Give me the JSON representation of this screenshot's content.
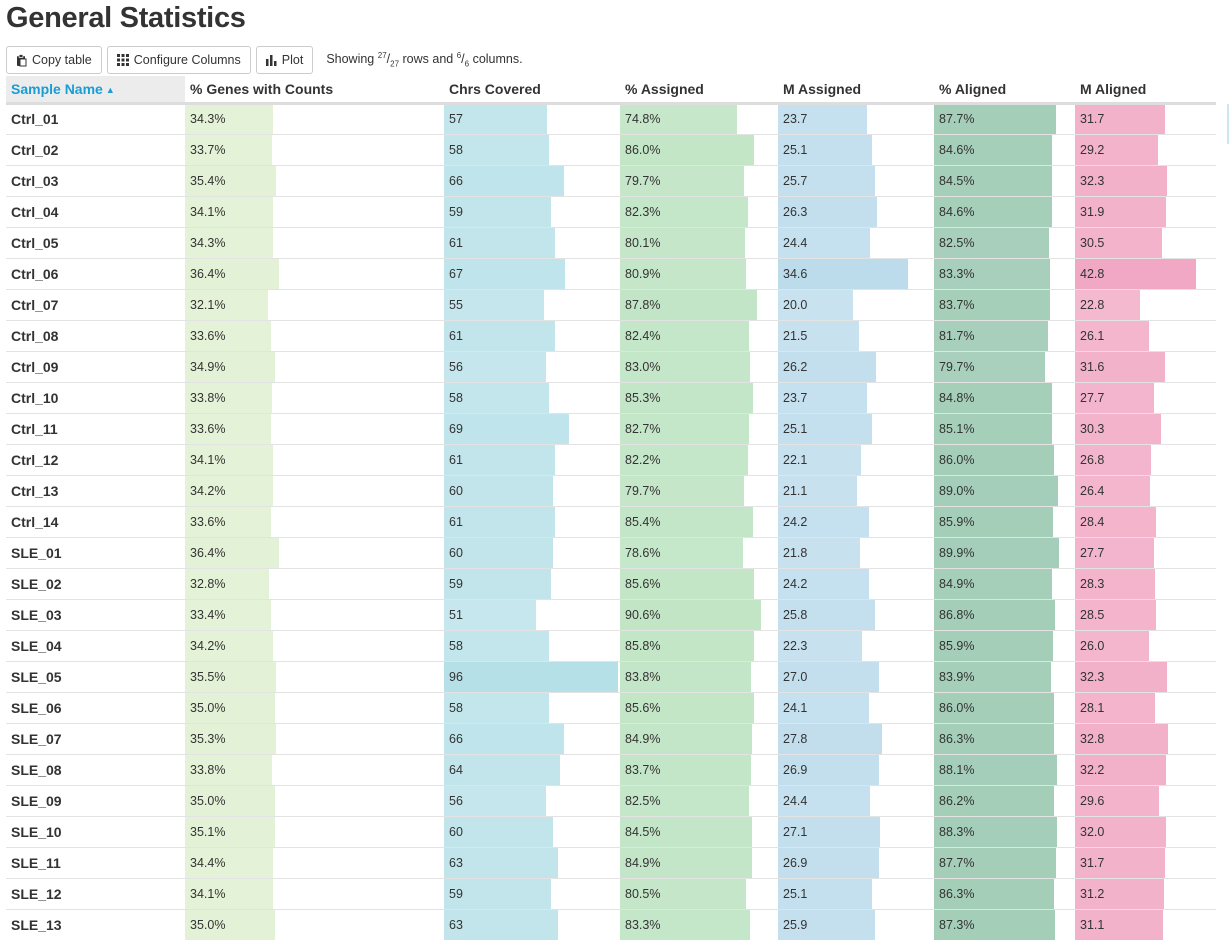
{
  "page_title": "General Statistics",
  "toolbar": {
    "copy_label": "Copy table",
    "configure_label": "Configure Columns",
    "plot_label": "Plot",
    "showing_prefix": "Showing ",
    "rows_shown": "27",
    "rows_total": "27",
    "rows_mid": " rows and ",
    "cols_shown": "6",
    "cols_total": "6",
    "cols_suffix": " columns."
  },
  "columns": [
    {
      "label": "Sample Name",
      "sorted": true,
      "sort_dir": "asc"
    },
    {
      "label": "% Genes with Counts",
      "color": "#d8ecc6",
      "max": 100
    },
    {
      "label": "Chrs Covered",
      "color": "#b6e0e8",
      "max": 96
    },
    {
      "label": "% Assigned",
      "color": "#bfe4c4",
      "max": 100
    },
    {
      "label": "M Assigned",
      "color": "#b8d9ea",
      "max": 41
    },
    {
      "label": "% Aligned",
      "color": "#9fcbb5",
      "max": 100
    },
    {
      "label": "M Aligned",
      "color": "#f0a3c0",
      "max": 49
    }
  ],
  "rows": [
    {
      "name": "Ctrl_01",
      "cells": [
        "34.3%",
        "57",
        "74.8%",
        "23.7",
        "87.7%",
        "31.7"
      ],
      "values": [
        34.3,
        57,
        74.8,
        23.7,
        87.7,
        31.7
      ]
    },
    {
      "name": "Ctrl_02",
      "cells": [
        "33.7%",
        "58",
        "86.0%",
        "25.1",
        "84.6%",
        "29.2"
      ],
      "values": [
        33.7,
        58,
        86.0,
        25.1,
        84.6,
        29.2
      ]
    },
    {
      "name": "Ctrl_03",
      "cells": [
        "35.4%",
        "66",
        "79.7%",
        "25.7",
        "84.5%",
        "32.3"
      ],
      "values": [
        35.4,
        66,
        79.7,
        25.7,
        84.5,
        32.3
      ]
    },
    {
      "name": "Ctrl_04",
      "cells": [
        "34.1%",
        "59",
        "82.3%",
        "26.3",
        "84.6%",
        "31.9"
      ],
      "values": [
        34.1,
        59,
        82.3,
        26.3,
        84.6,
        31.9
      ]
    },
    {
      "name": "Ctrl_05",
      "cells": [
        "34.3%",
        "61",
        "80.1%",
        "24.4",
        "82.5%",
        "30.5"
      ],
      "values": [
        34.3,
        61,
        80.1,
        24.4,
        82.5,
        30.5
      ]
    },
    {
      "name": "Ctrl_06",
      "cells": [
        "36.4%",
        "67",
        "80.9%",
        "34.6",
        "83.3%",
        "42.8"
      ],
      "values": [
        36.4,
        67,
        80.9,
        34.6,
        83.3,
        42.8
      ]
    },
    {
      "name": "Ctrl_07",
      "cells": [
        "32.1%",
        "55",
        "87.8%",
        "20.0",
        "83.7%",
        "22.8"
      ],
      "values": [
        32.1,
        55,
        87.8,
        20.0,
        83.7,
        22.8
      ]
    },
    {
      "name": "Ctrl_08",
      "cells": [
        "33.6%",
        "61",
        "82.4%",
        "21.5",
        "81.7%",
        "26.1"
      ],
      "values": [
        33.6,
        61,
        82.4,
        21.5,
        81.7,
        26.1
      ]
    },
    {
      "name": "Ctrl_09",
      "cells": [
        "34.9%",
        "56",
        "83.0%",
        "26.2",
        "79.7%",
        "31.6"
      ],
      "values": [
        34.9,
        56,
        83.0,
        26.2,
        79.7,
        31.6
      ]
    },
    {
      "name": "Ctrl_10",
      "cells": [
        "33.8%",
        "58",
        "85.3%",
        "23.7",
        "84.8%",
        "27.7"
      ],
      "values": [
        33.8,
        58,
        85.3,
        23.7,
        84.8,
        27.7
      ]
    },
    {
      "name": "Ctrl_11",
      "cells": [
        "33.6%",
        "69",
        "82.7%",
        "25.1",
        "85.1%",
        "30.3"
      ],
      "values": [
        33.6,
        69,
        82.7,
        25.1,
        85.1,
        30.3
      ]
    },
    {
      "name": "Ctrl_12",
      "cells": [
        "34.1%",
        "61",
        "82.2%",
        "22.1",
        "86.0%",
        "26.8"
      ],
      "values": [
        34.1,
        61,
        82.2,
        22.1,
        86.0,
        26.8
      ]
    },
    {
      "name": "Ctrl_13",
      "cells": [
        "34.2%",
        "60",
        "79.7%",
        "21.1",
        "89.0%",
        "26.4"
      ],
      "values": [
        34.2,
        60,
        79.7,
        21.1,
        89.0,
        26.4
      ]
    },
    {
      "name": "Ctrl_14",
      "cells": [
        "33.6%",
        "61",
        "85.4%",
        "24.2",
        "85.9%",
        "28.4"
      ],
      "values": [
        33.6,
        61,
        85.4,
        24.2,
        85.9,
        28.4
      ]
    },
    {
      "name": "SLE_01",
      "cells": [
        "36.4%",
        "60",
        "78.6%",
        "21.8",
        "89.9%",
        "27.7"
      ],
      "values": [
        36.4,
        60,
        78.6,
        21.8,
        89.9,
        27.7
      ]
    },
    {
      "name": "SLE_02",
      "cells": [
        "32.8%",
        "59",
        "85.6%",
        "24.2",
        "84.9%",
        "28.3"
      ],
      "values": [
        32.8,
        59,
        85.6,
        24.2,
        84.9,
        28.3
      ]
    },
    {
      "name": "SLE_03",
      "cells": [
        "33.4%",
        "51",
        "90.6%",
        "25.8",
        "86.8%",
        "28.5"
      ],
      "values": [
        33.4,
        51,
        90.6,
        25.8,
        86.8,
        28.5
      ]
    },
    {
      "name": "SLE_04",
      "cells": [
        "34.2%",
        "58",
        "85.8%",
        "22.3",
        "85.9%",
        "26.0"
      ],
      "values": [
        34.2,
        58,
        85.8,
        22.3,
        85.9,
        26.0
      ]
    },
    {
      "name": "SLE_05",
      "cells": [
        "35.5%",
        "96",
        "83.8%",
        "27.0",
        "83.9%",
        "32.3"
      ],
      "values": [
        35.5,
        96,
        83.8,
        27.0,
        83.9,
        32.3
      ]
    },
    {
      "name": "SLE_06",
      "cells": [
        "35.0%",
        "58",
        "85.6%",
        "24.1",
        "86.0%",
        "28.1"
      ],
      "values": [
        35.0,
        58,
        85.6,
        24.1,
        86.0,
        28.1
      ]
    },
    {
      "name": "SLE_07",
      "cells": [
        "35.3%",
        "66",
        "84.9%",
        "27.8",
        "86.3%",
        "32.8"
      ],
      "values": [
        35.3,
        66,
        84.9,
        27.8,
        86.3,
        32.8
      ]
    },
    {
      "name": "SLE_08",
      "cells": [
        "33.8%",
        "64",
        "83.7%",
        "26.9",
        "88.1%",
        "32.2"
      ],
      "values": [
        33.8,
        64,
        83.7,
        26.9,
        88.1,
        32.2
      ]
    },
    {
      "name": "SLE_09",
      "cells": [
        "35.0%",
        "56",
        "82.5%",
        "24.4",
        "86.2%",
        "29.6"
      ],
      "values": [
        35.0,
        56,
        82.5,
        24.4,
        86.2,
        29.6
      ]
    },
    {
      "name": "SLE_10",
      "cells": [
        "35.1%",
        "60",
        "84.5%",
        "27.1",
        "88.3%",
        "32.0"
      ],
      "values": [
        35.1,
        60,
        84.5,
        27.1,
        88.3,
        32.0
      ]
    },
    {
      "name": "SLE_11",
      "cells": [
        "34.4%",
        "63",
        "84.9%",
        "26.9",
        "87.7%",
        "31.7"
      ],
      "values": [
        34.4,
        63,
        84.9,
        26.9,
        87.7,
        31.7
      ]
    },
    {
      "name": "SLE_12",
      "cells": [
        "34.1%",
        "59",
        "80.5%",
        "25.1",
        "86.3%",
        "31.2"
      ],
      "values": [
        34.1,
        59,
        80.5,
        25.1,
        86.3,
        31.2
      ]
    },
    {
      "name": "SLE_13",
      "cells": [
        "35.0%",
        "63",
        "83.3%",
        "25.9",
        "87.3%",
        "31.1"
      ],
      "values": [
        35.0,
        63,
        83.3,
        25.9,
        87.3,
        31.1
      ]
    }
  ]
}
